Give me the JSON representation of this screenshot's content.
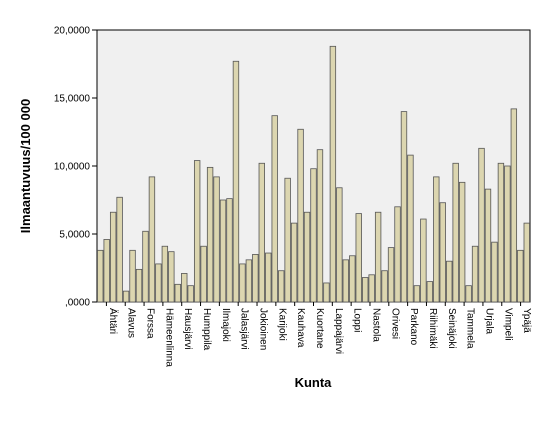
{
  "chart_data": {
    "type": "bar",
    "xlabel": "Kunta",
    "ylabel": "Ilmaantuvuus/100 000",
    "ylim": [
      0,
      20000
    ],
    "yticks": [
      0,
      5000,
      10000,
      15000,
      20000
    ],
    "ytick_labels": [
      ",0000",
      "5,0000",
      "10,0000",
      "15,0000",
      "20,0000"
    ],
    "grid": false,
    "legend": "none",
    "colors": {
      "plot_background": "#f0f0f0",
      "bar_fill": "#dcd6b0",
      "bar_stroke": "#555555",
      "axis": "#000000"
    },
    "tick_labels": [
      "Ähtäri",
      "Alavus",
      "Forssa",
      "Hämeenlinna",
      "Hausjärvi",
      "Humppila",
      "Ilmajoki",
      "Jalasjärvi",
      "Jokioinen",
      "Karijoki",
      "Kauhava",
      "Kuortane",
      "Lappajärvi",
      "Loppi",
      "Nastola",
      "Orivesi",
      "Parkano",
      "Riihimäki",
      "Seinäjoki",
      "Tammela",
      "Urjala",
      "Vimpeli",
      "Ypäjä"
    ],
    "values": [
      3800,
      4600,
      6600,
      7700,
      800,
      3800,
      2400,
      5200,
      9200,
      2800,
      4100,
      3700,
      1300,
      2100,
      1200,
      10400,
      4100,
      9900,
      9200,
      7500,
      7600,
      17700,
      2800,
      3100,
      3500,
      10200,
      3600,
      13700,
      2300,
      9100,
      5800,
      12700,
      6600,
      9800,
      11200,
      1400,
      18800,
      8400,
      3100,
      3400,
      6500,
      1800,
      2000,
      6600,
      2300,
      4000,
      7000,
      14000,
      10800,
      1200,
      6100,
      1500,
      9200,
      7300,
      3000,
      10200,
      8800,
      1200,
      4100,
      11300,
      8300,
      4400,
      10200,
      10000,
      14200,
      3800,
      5800
    ]
  }
}
